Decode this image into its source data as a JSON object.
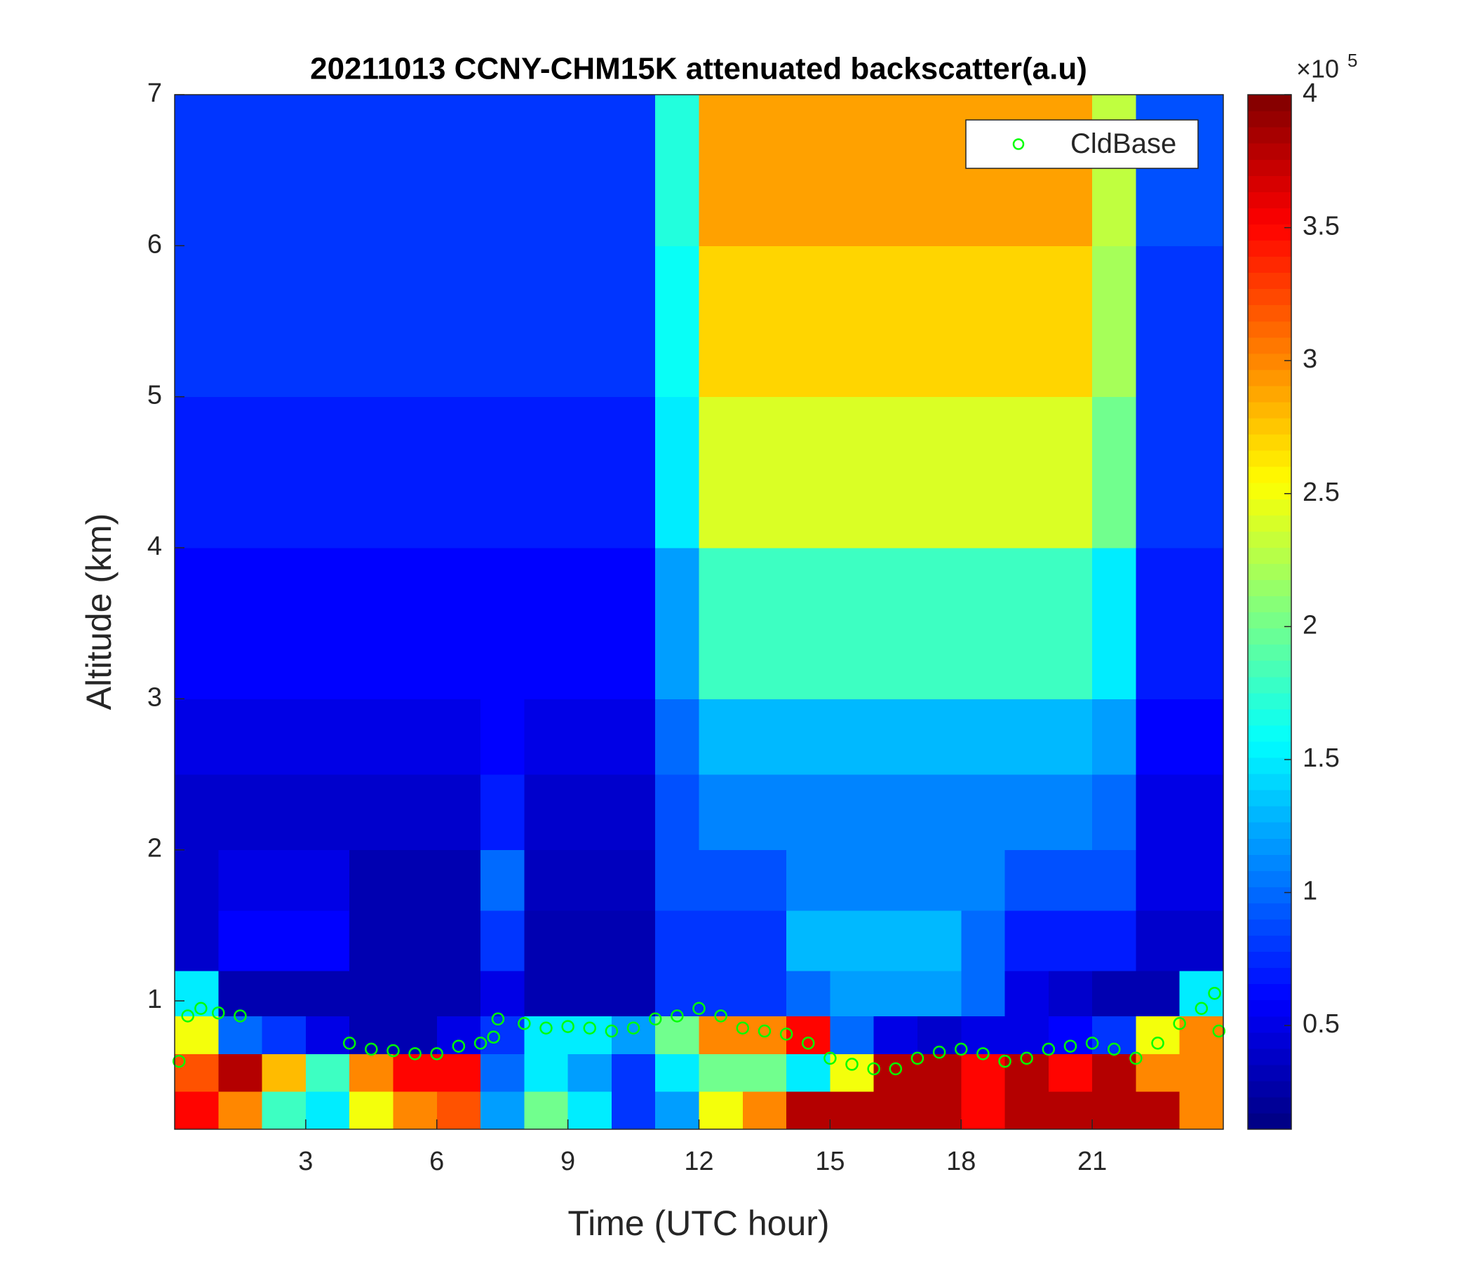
{
  "chart_data": {
    "type": "heatmap",
    "title": "20211013 CCNY-CHM15K attenuated backscatter(a.u)",
    "xlabel": "Time (UTC hour)",
    "ylabel": "Altitude (km)",
    "xlim": [
      0,
      24
    ],
    "ylim": [
      0.15,
      7
    ],
    "xticks": [
      3,
      6,
      9,
      12,
      15,
      18,
      21
    ],
    "yticks": [
      1,
      2,
      3,
      4,
      5,
      6,
      7
    ],
    "colormap": "jet",
    "clim": [
      0.11,
      4
    ],
    "cticks": [
      0.5,
      1,
      1.5,
      2,
      2.5,
      3,
      3.5,
      4
    ],
    "colorbar_multiplier": "×10",
    "colorbar_exponent": "5",
    "x_edges": [
      0,
      1,
      2,
      3,
      4,
      5,
      6,
      7,
      8,
      9,
      10,
      11,
      12,
      13,
      14,
      15,
      16,
      17,
      18,
      19,
      20,
      21,
      22,
      23,
      24
    ],
    "y_edges": [
      0.15,
      0.4,
      0.65,
      0.9,
      1.2,
      1.6,
      2,
      2.5,
      3,
      4,
      5,
      6,
      7
    ],
    "values": [
      [
        3.5,
        3,
        1.8,
        1.5,
        2.5,
        3,
        3.2,
        1.2,
        2,
        1.5,
        0.8,
        1.2,
        2.5,
        3,
        3.8,
        3.8,
        3.8,
        3.8,
        3.5,
        3.8,
        3.8,
        3.8,
        3.8,
        3
      ],
      [
        3.2,
        3.8,
        2.8,
        1.8,
        3,
        3.5,
        3.5,
        1,
        1.5,
        1.2,
        0.8,
        1.5,
        2,
        2,
        1.5,
        2.5,
        3.8,
        3.8,
        3.5,
        3.8,
        3.5,
        3.8,
        3,
        3
      ],
      [
        2.5,
        1,
        0.8,
        0.5,
        0.3,
        0.3,
        0.5,
        0.8,
        1.5,
        1.5,
        1.2,
        2,
        3,
        3,
        3.5,
        1,
        0.5,
        0.4,
        0.5,
        0.5,
        0.6,
        0.8,
        2.5,
        3
      ],
      [
        1.5,
        0.3,
        0.3,
        0.3,
        0.3,
        0.3,
        0.3,
        0.5,
        0.3,
        0.3,
        0.3,
        0.8,
        0.8,
        0.8,
        1,
        1.2,
        1.2,
        1.2,
        1,
        0.5,
        0.4,
        0.3,
        0.3,
        1.5
      ],
      [
        0.4,
        0.6,
        0.6,
        0.6,
        0.3,
        0.3,
        0.3,
        0.8,
        0.3,
        0.3,
        0.3,
        0.8,
        0.8,
        0.8,
        1.3,
        1.3,
        1.3,
        1.3,
        1,
        0.7,
        0.7,
        0.7,
        0.4,
        0.4
      ],
      [
        0.4,
        0.5,
        0.5,
        0.5,
        0.3,
        0.3,
        0.3,
        1,
        0.35,
        0.35,
        0.35,
        0.9,
        0.9,
        0.9,
        1.1,
        1.1,
        1.1,
        1.1,
        1.1,
        0.9,
        0.9,
        0.9,
        0.5,
        0.5
      ],
      [
        0.4,
        0.4,
        0.4,
        0.4,
        0.4,
        0.4,
        0.4,
        0.7,
        0.4,
        0.4,
        0.4,
        0.9,
        1.1,
        1.1,
        1.1,
        1.1,
        1.1,
        1.1,
        1.1,
        1.1,
        1.1,
        1,
        0.5,
        0.5
      ],
      [
        0.5,
        0.5,
        0.5,
        0.5,
        0.5,
        0.5,
        0.5,
        0.6,
        0.5,
        0.5,
        0.5,
        1,
        1.3,
        1.3,
        1.3,
        1.3,
        1.3,
        1.3,
        1.3,
        1.3,
        1.3,
        1.2,
        0.6,
        0.6
      ],
      [
        0.6,
        0.6,
        0.6,
        0.6,
        0.6,
        0.6,
        0.6,
        0.6,
        0.6,
        0.6,
        0.6,
        1.2,
        1.8,
        1.8,
        1.8,
        1.8,
        1.8,
        1.8,
        1.8,
        1.8,
        1.8,
        1.5,
        0.7,
        0.7
      ],
      [
        0.7,
        0.7,
        0.7,
        0.7,
        0.7,
        0.7,
        0.7,
        0.7,
        0.7,
        0.7,
        0.7,
        1.5,
        2.4,
        2.4,
        2.4,
        2.4,
        2.4,
        2.4,
        2.4,
        2.4,
        2.4,
        2,
        0.8,
        0.8
      ],
      [
        0.8,
        0.8,
        0.8,
        0.8,
        0.8,
        0.8,
        0.8,
        0.8,
        0.8,
        0.8,
        0.8,
        1.6,
        2.7,
        2.7,
        2.7,
        2.7,
        2.7,
        2.7,
        2.7,
        2.7,
        2.7,
        2.2,
        0.8,
        0.8
      ],
      [
        0.8,
        0.8,
        0.8,
        0.8,
        0.8,
        0.8,
        0.8,
        0.8,
        0.8,
        0.8,
        0.8,
        1.7,
        2.9,
        2.9,
        2.9,
        2.9,
        2.9,
        2.9,
        2.9,
        2.9,
        2.9,
        2.3,
        0.9,
        0.9
      ]
    ],
    "series": [
      {
        "name": "CldBase",
        "color": "#00ff00",
        "x": [
          0.1,
          0.3,
          0.6,
          1.0,
          1.5,
          4.0,
          4.5,
          5.0,
          5.5,
          6.0,
          6.5,
          7.0,
          7.3,
          7.4,
          8.0,
          8.5,
          9.0,
          9.5,
          10.0,
          10.5,
          11.0,
          11.5,
          12.0,
          12.5,
          13.0,
          13.5,
          14.0,
          14.5,
          15.0,
          15.5,
          16.0,
          16.5,
          17.0,
          17.5,
          18.0,
          18.5,
          19.0,
          19.5,
          20.0,
          20.5,
          21.0,
          21.5,
          22.0,
          22.5,
          23.0,
          23.5,
          23.8,
          23.9
        ],
        "y": [
          0.6,
          0.9,
          0.95,
          0.92,
          0.9,
          0.72,
          0.68,
          0.67,
          0.65,
          0.65,
          0.7,
          0.72,
          0.76,
          0.88,
          0.85,
          0.82,
          0.83,
          0.82,
          0.8,
          0.82,
          0.88,
          0.9,
          0.95,
          0.9,
          0.82,
          0.8,
          0.78,
          0.72,
          0.62,
          0.58,
          0.55,
          0.55,
          0.62,
          0.66,
          0.68,
          0.65,
          0.6,
          0.62,
          0.68,
          0.7,
          0.72,
          0.68,
          0.62,
          0.72,
          0.85,
          0.95,
          1.05,
          0.8
        ]
      }
    ],
    "legend": "northeast"
  }
}
